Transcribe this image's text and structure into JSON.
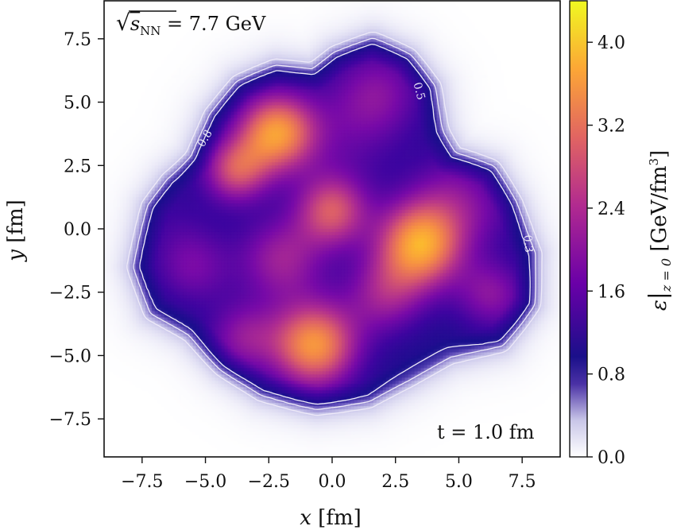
{
  "chart_data": {
    "type": "heatmap",
    "xlabel_var": "x",
    "xlabel_unit": "[fm]",
    "ylabel_var": "y",
    "ylabel_unit": "[fm]",
    "xlim": [
      -9.0,
      9.0
    ],
    "ylim": [
      -9.0,
      9.0
    ],
    "x_ticks": [
      -7.5,
      -5.0,
      -2.5,
      0.0,
      2.5,
      5.0,
      7.5
    ],
    "y_ticks": [
      -7.5,
      -5.0,
      -2.5,
      0.0,
      2.5,
      5.0,
      7.5
    ],
    "x_tick_labels": [
      "−7.5",
      "−5.0",
      "−2.5",
      "0.0",
      "2.5",
      "5.0",
      "7.5"
    ],
    "y_tick_labels": [
      "−7.5",
      "−5.0",
      "−2.5",
      "0.0",
      "2.5",
      "5.0",
      "7.5"
    ],
    "annotation_energy_prefix": "√",
    "annotation_energy_var": "s",
    "annotation_energy_sub": "NN",
    "annotation_energy_value": " = 7.7 GeV",
    "annotation_time": "t = 1.0 fm",
    "colorbar": {
      "label_main": "ε",
      "label_sub": "z = 0",
      "label_unit": "[GeV/fm",
      "label_unit_sup": "3",
      "label_close": "]",
      "range": [
        0.0,
        4.4
      ],
      "ticks": [
        0.0,
        0.8,
        1.6,
        2.4,
        3.2,
        4.0
      ],
      "tick_labels": [
        "0.0",
        "0.8",
        "1.6",
        "2.4",
        "3.2",
        "4.0"
      ],
      "colormap": "plasma-with-white-low"
    },
    "contours": [
      {
        "level": 0.3,
        "label": "0.3"
      },
      {
        "level": 0.5,
        "label": "0.5"
      },
      {
        "level": 0.8,
        "label": "0.8"
      }
    ],
    "blobs": [
      {
        "x": -2.2,
        "y": 3.8,
        "value": 3.6,
        "spread": 1.1
      },
      {
        "x": -3.8,
        "y": 2.3,
        "value": 2.7,
        "spread": 0.9
      },
      {
        "x": 3.5,
        "y": -0.6,
        "value": 3.8,
        "spread": 1.2
      },
      {
        "x": -0.7,
        "y": -4.6,
        "value": 3.6,
        "spread": 1.2
      },
      {
        "x": 0.0,
        "y": 0.7,
        "value": 2.8,
        "spread": 1.0
      },
      {
        "x": 1.8,
        "y": 5.4,
        "value": 1.9,
        "spread": 1.3
      },
      {
        "x": -2.0,
        "y": -1.2,
        "value": 2.2,
        "spread": 1.2
      },
      {
        "x": 2.1,
        "y": -2.6,
        "value": 2.1,
        "spread": 1.1
      },
      {
        "x": 6.3,
        "y": -2.6,
        "value": 2.0,
        "spread": 1.0
      },
      {
        "x": -5.5,
        "y": -1.5,
        "value": 1.8,
        "spread": 1.1
      },
      {
        "x": -3.5,
        "y": -4.3,
        "value": 2.0,
        "spread": 1.0
      },
      {
        "x": 4.8,
        "y": 1.5,
        "value": 1.7,
        "spread": 1.2
      },
      {
        "x": 0.5,
        "y": 3.5,
        "value": 1.4,
        "spread": 1.5
      },
      {
        "x": -6.5,
        "y": 0.5,
        "value": 1.2,
        "spread": 1.2
      },
      {
        "x": 6.2,
        "y": 0.5,
        "value": 1.3,
        "spread": 1.0
      }
    ]
  }
}
